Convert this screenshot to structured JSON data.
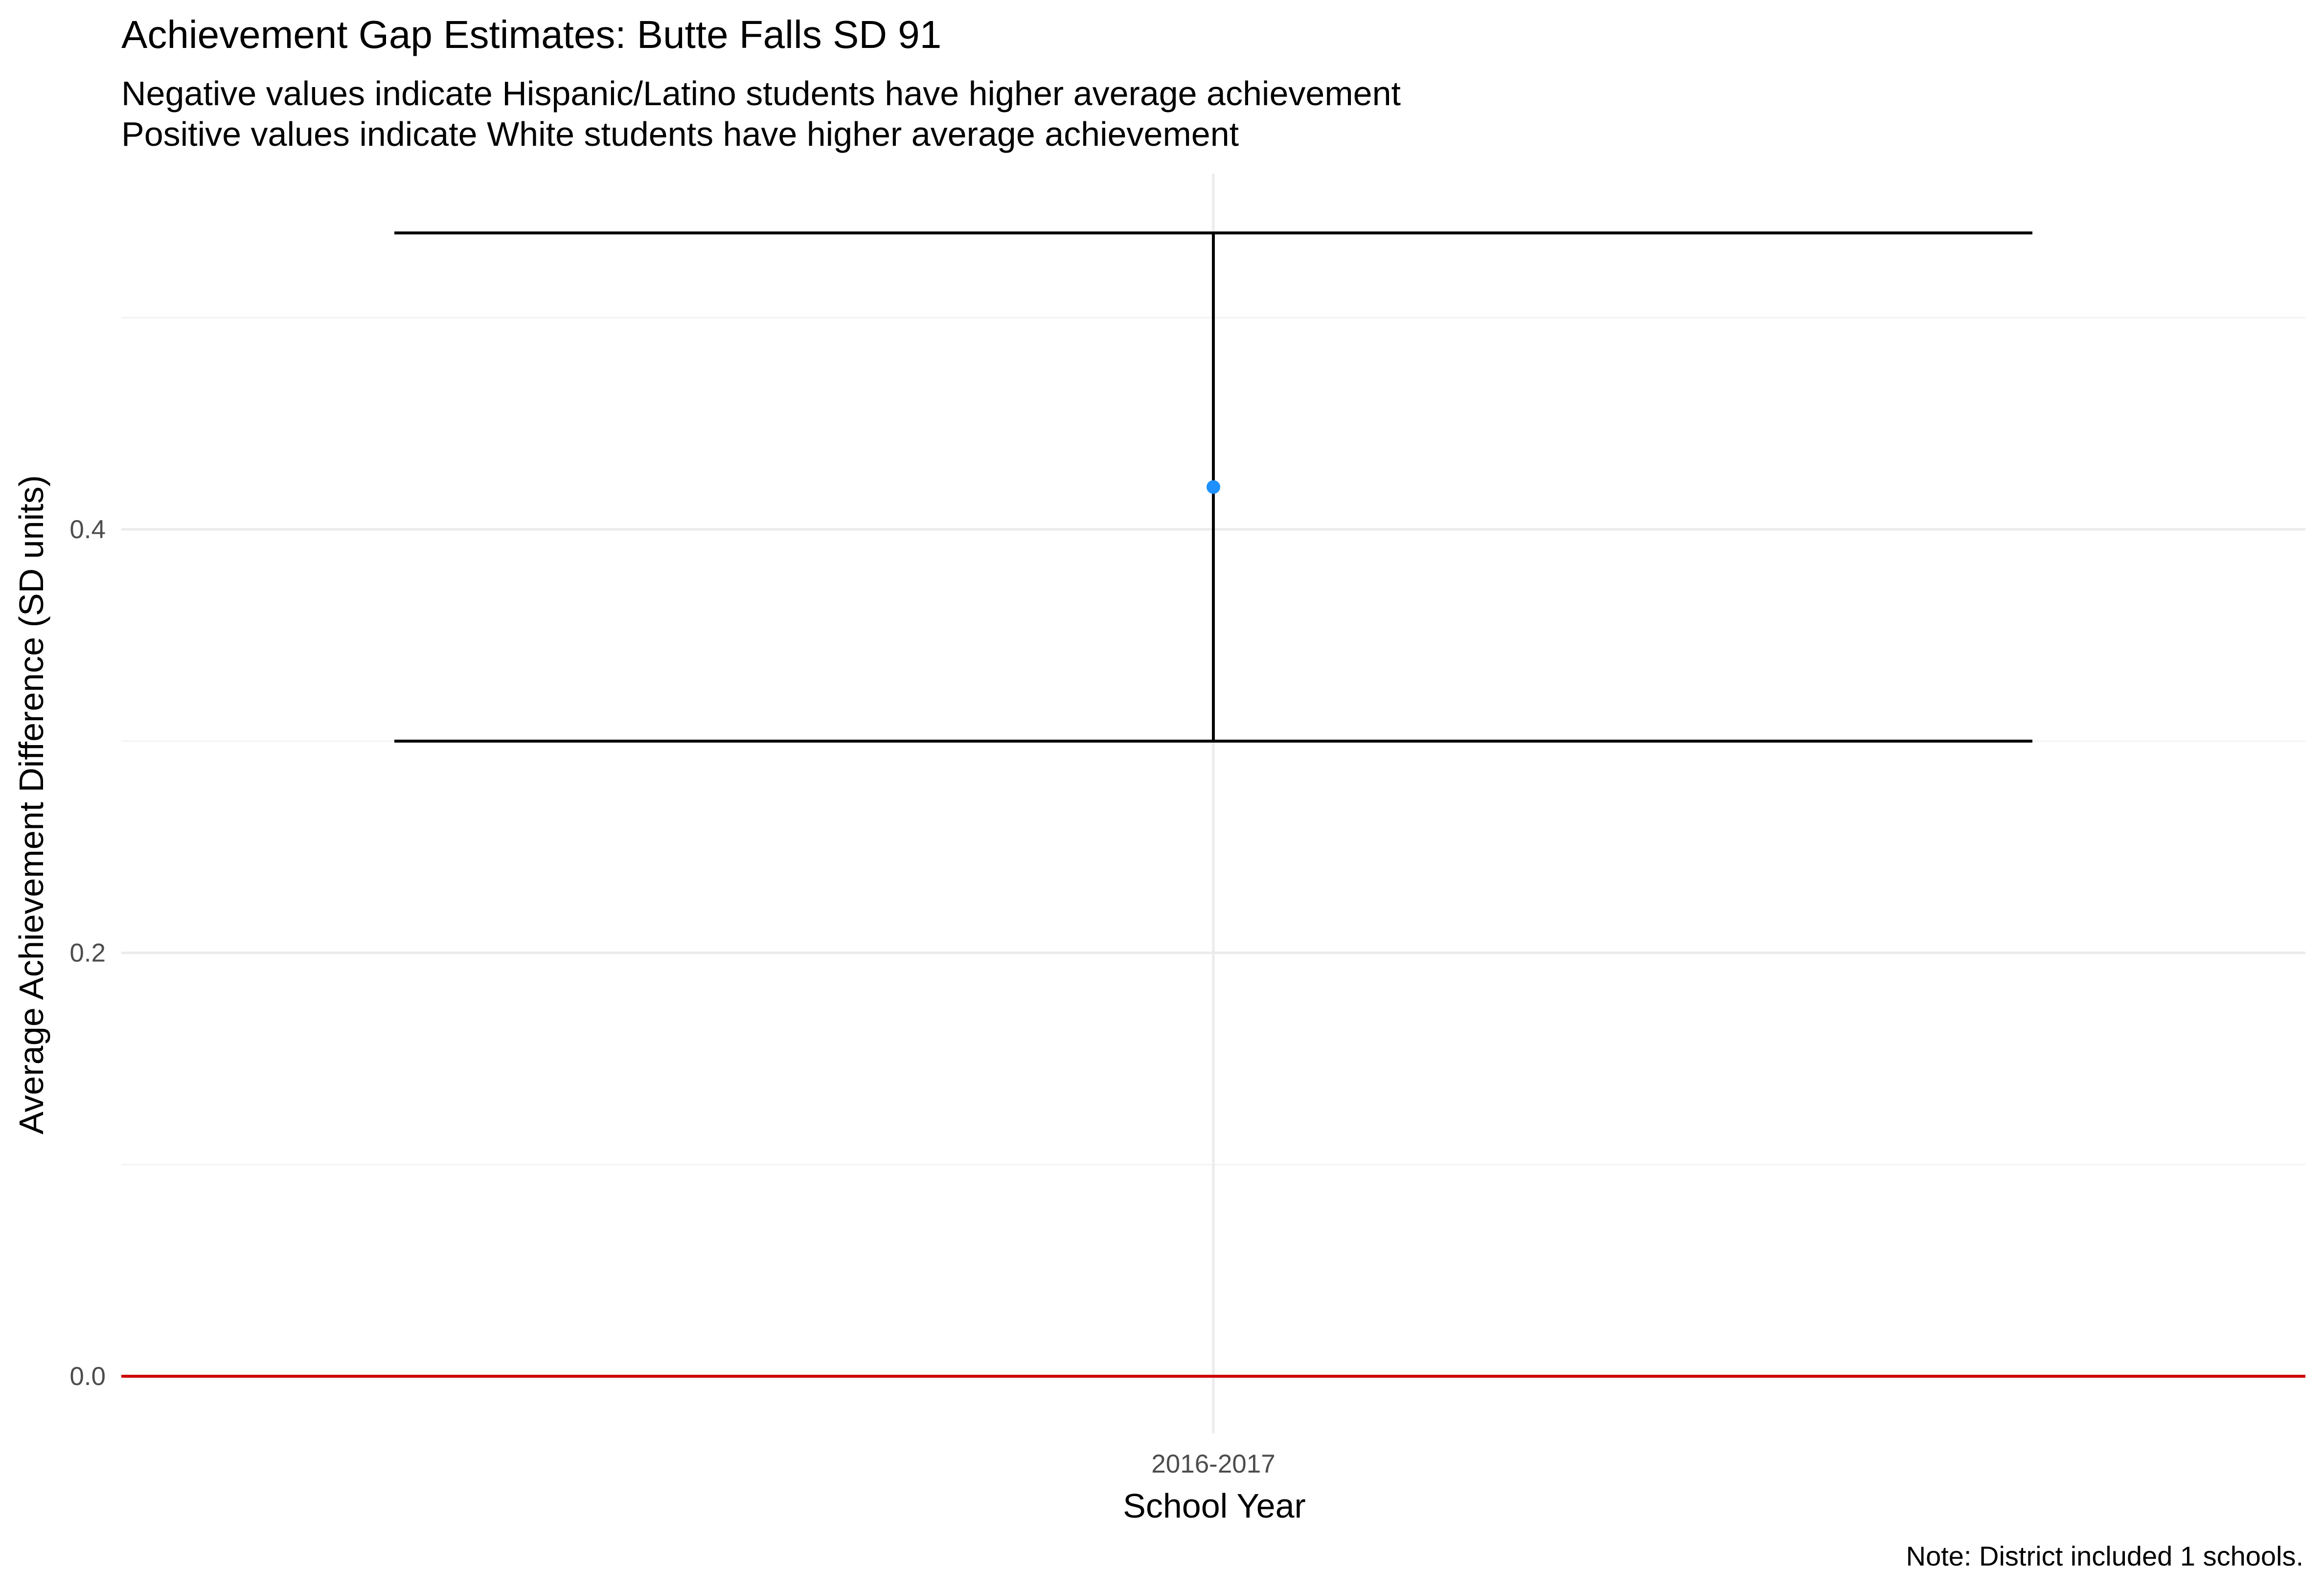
{
  "chart_data": {
    "type": "scatter",
    "title": "Achievement Gap Estimates: Butte Falls SD 91",
    "subtitle_lines": [
      "Negative values indicate Hispanic/Latino students have higher average achievement",
      "Positive values indicate White students have higher average achievement"
    ],
    "xlabel": "School Year",
    "ylabel": "Average Achievement Difference (SD units)",
    "caption": "Note: District included 1 schools.",
    "categories": [
      "2016-2017"
    ],
    "series": [
      {
        "values": [
          0.42
        ],
        "ci_lower": [
          0.3
        ],
        "ci_upper": [
          0.54
        ]
      }
    ],
    "ylim": [
      -0.027,
      0.568
    ],
    "y_ticks": [
      0.0,
      0.2,
      0.4
    ],
    "y_tick_labels": [
      "0.0",
      "0.2",
      "0.4"
    ],
    "y_minor_ticks": [
      0.1,
      0.3,
      0.5
    ],
    "reference_line": 0.0,
    "grid": true,
    "legend": "none",
    "colors": {
      "point": "#1e90ff",
      "errorbar": "#000000",
      "reference_line": "#cc0000",
      "grid_major": "#ebebeb",
      "grid_minor": "#f3f3f3"
    }
  }
}
